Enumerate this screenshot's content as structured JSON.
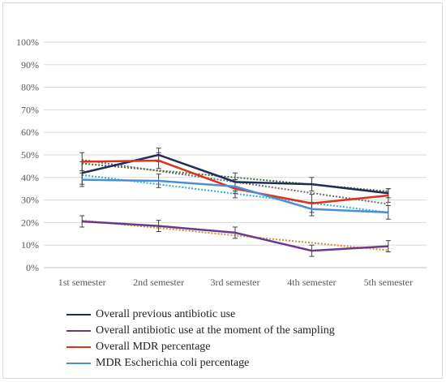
{
  "chart_data": {
    "type": "line",
    "title": "",
    "xlabel": "",
    "ylabel": "",
    "categories": [
      "1st semester",
      "2nd semester",
      "3rd semester",
      "4th semester",
      "5th semester"
    ],
    "ylim": [
      0,
      100
    ],
    "y_ticks": [
      "0%",
      "10%",
      "20%",
      "30%",
      "40%",
      "50%",
      "60%",
      "70%",
      "80%",
      "90%",
      "100%"
    ],
    "y_tick_values": [
      0,
      10,
      20,
      30,
      40,
      50,
      60,
      70,
      80,
      90,
      100
    ],
    "grid": true,
    "legend_position": "bottom",
    "error_bars": true,
    "trendlines": "linear, dotted",
    "series": [
      {
        "name": "Overall previous antibiotic use",
        "color": "#1f2d5a",
        "trend_color": "#3d6e3a",
        "values": [
          42,
          50,
          38,
          37,
          33
        ],
        "error": [
          5,
          3,
          4,
          3,
          2
        ]
      },
      {
        "name": "Overall antibiotic use at the moment of the sampling",
        "color": "#6a3a8a",
        "trend_color": "#d98a3a",
        "values": [
          20.5,
          18.5,
          15.5,
          7.5,
          9.5
        ],
        "error": [
          2.5,
          2.5,
          2.5,
          2.5,
          2.5
        ]
      },
      {
        "name": "Overall MDR percentage",
        "color": "#e0301e",
        "trend_color": "#6b6b6b",
        "values": [
          47,
          47.5,
          35,
          28.5,
          32
        ],
        "error": [
          4,
          3.5,
          4,
          4,
          3
        ]
      },
      {
        "name": "MDR Escherichia coli percentage",
        "color": "#4a8fd4",
        "trend_color": "#2ab0d8",
        "values": [
          39,
          38.5,
          36,
          26,
          24.5
        ],
        "error": [
          3,
          3,
          3,
          3,
          3
        ]
      }
    ]
  }
}
